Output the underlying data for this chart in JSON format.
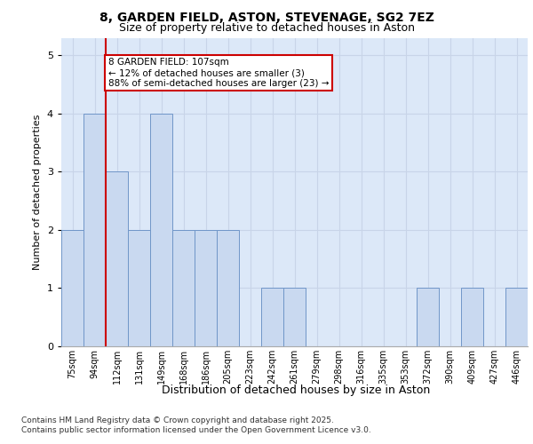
{
  "title1": "8, GARDEN FIELD, ASTON, STEVENAGE, SG2 7EZ",
  "title2": "Size of property relative to detached houses in Aston",
  "xlabel": "Distribution of detached houses by size in Aston",
  "ylabel": "Number of detached properties",
  "bins": [
    "75sqm",
    "94sqm",
    "112sqm",
    "131sqm",
    "149sqm",
    "168sqm",
    "186sqm",
    "205sqm",
    "223sqm",
    "242sqm",
    "261sqm",
    "279sqm",
    "298sqm",
    "316sqm",
    "335sqm",
    "353sqm",
    "372sqm",
    "390sqm",
    "409sqm",
    "427sqm",
    "446sqm"
  ],
  "values": [
    2,
    4,
    3,
    2,
    4,
    2,
    2,
    2,
    0,
    1,
    1,
    0,
    0,
    0,
    0,
    0,
    1,
    0,
    1,
    0,
    1
  ],
  "bar_color": "#c9d9f0",
  "bar_edge_color": "#7096c8",
  "property_line_color": "#cc0000",
  "annotation_text": "8 GARDEN FIELD: 107sqm\n← 12% of detached houses are smaller (3)\n88% of semi-detached houses are larger (23) →",
  "annotation_box_color": "#ffffff",
  "annotation_box_edge": "#cc0000",
  "yticks": [
    0,
    1,
    2,
    3,
    4,
    5
  ],
  "ylim": [
    0,
    5.3
  ],
  "grid_color": "#c8d4e8",
  "background_color": "#dce8f8",
  "footer1": "Contains HM Land Registry data © Crown copyright and database right 2025.",
  "footer2": "Contains public sector information licensed under the Open Government Licence v3.0."
}
